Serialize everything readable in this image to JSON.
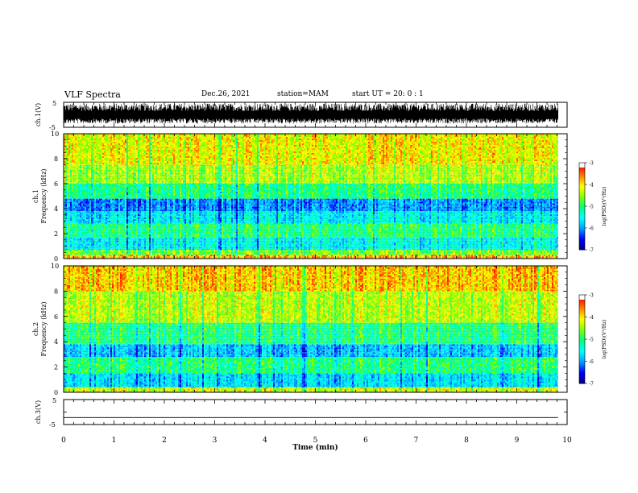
{
  "header": {
    "title": "VLF Spectra",
    "date": "Dec.26, 2021",
    "station": "station=MAM",
    "start": "start  UT =   20: 0  : 1"
  },
  "colors": {
    "trace": "#000000",
    "colormap": [
      "#00008b",
      "#0000ff",
      "#00a0ff",
      "#00ffff",
      "#00ff80",
      "#80ff00",
      "#ffff00",
      "#ff8000",
      "#ff0000",
      "#ffffff"
    ]
  },
  "chart_data": [
    {
      "type": "line",
      "id": "ch1-waveform",
      "ylabel": "ch.1(V)",
      "ylim": [
        -5,
        5
      ],
      "yticks": [
        "5",
        "-5"
      ],
      "xlim": [
        0,
        10
      ],
      "description_range": [
        -3.5,
        4.5
      ],
      "grid": false
    },
    {
      "type": "heatmap",
      "id": "ch1-spectrogram",
      "ylabel": "ch.1\nFrequency (kHz)",
      "ylim": [
        0,
        10
      ],
      "yticks": [
        "0",
        "2",
        "4",
        "6",
        "8",
        "10"
      ],
      "xlim": [
        0,
        10
      ],
      "data_end_min": 9.82,
      "bands": [
        {
          "from": 0,
          "to": 0.3,
          "level": 0.82
        },
        {
          "from": 0.3,
          "to": 0.7,
          "level": 0.6
        },
        {
          "from": 0.7,
          "to": 1.7,
          "level": 0.38
        },
        {
          "from": 1.7,
          "to": 2.8,
          "level": 0.5
        },
        {
          "from": 2.8,
          "to": 3.8,
          "level": 0.36
        },
        {
          "from": 3.8,
          "to": 4.8,
          "level": 0.24
        },
        {
          "from": 4.8,
          "to": 6.0,
          "level": 0.5
        },
        {
          "from": 6.0,
          "to": 7.5,
          "level": 0.66
        },
        {
          "from": 7.5,
          "to": 10,
          "level": 0.74
        }
      ],
      "colorbar": {
        "label": "log(PSD)(V²/Hz)",
        "ticks": [
          "-3",
          "-4",
          "-5",
          "-6",
          "-7"
        ],
        "range": [
          -7,
          -3
        ]
      }
    },
    {
      "type": "heatmap",
      "id": "ch2-spectrogram",
      "ylabel": "ch.2\nFrequency (kHz)",
      "ylim": [
        0,
        10
      ],
      "yticks": [
        "0",
        "2",
        "4",
        "6",
        "8",
        "10"
      ],
      "xlim": [
        0,
        10
      ],
      "data_end_min": 9.82,
      "bands": [
        {
          "from": 0,
          "to": 0.4,
          "level": 0.7
        },
        {
          "from": 0.4,
          "to": 1.5,
          "level": 0.34
        },
        {
          "from": 1.5,
          "to": 2.8,
          "level": 0.5
        },
        {
          "from": 2.8,
          "to": 3.8,
          "level": 0.3
        },
        {
          "from": 3.8,
          "to": 5.5,
          "level": 0.5
        },
        {
          "from": 5.5,
          "to": 8.0,
          "level": 0.68
        },
        {
          "from": 8.0,
          "to": 10,
          "level": 0.8
        }
      ],
      "colorbar": {
        "label": "log(PSD)(V²/Hz)",
        "ticks": [
          "-3",
          "-4",
          "-5",
          "-6",
          "-7"
        ],
        "range": [
          -7,
          -3
        ]
      }
    },
    {
      "type": "line",
      "id": "ch3-waveform",
      "ylabel": "ch.3(V)",
      "ylim": [
        -5,
        5
      ],
      "yticks": [
        "5",
        "0",
        "-5"
      ],
      "xlim": [
        0,
        10
      ],
      "constant_value": -2.2
    }
  ],
  "xaxis": {
    "label": "Time  (min)",
    "ticks": [
      "0",
      "1",
      "2",
      "3",
      "4",
      "5",
      "6",
      "7",
      "8",
      "9",
      "10"
    ]
  }
}
